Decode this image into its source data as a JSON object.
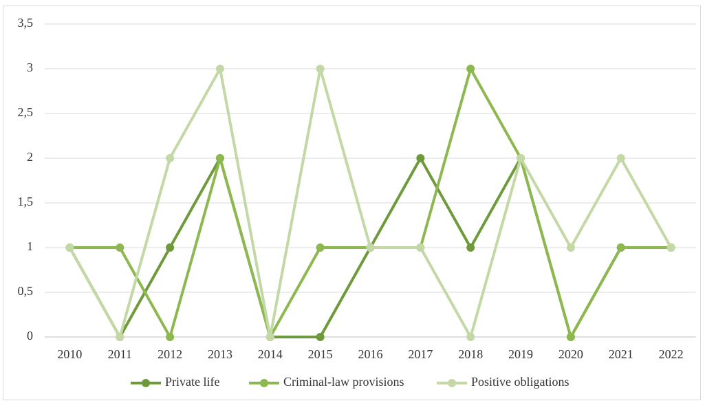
{
  "chart_data": {
    "type": "line",
    "title": "",
    "xlabel": "",
    "ylabel": "",
    "categories": [
      "2010",
      "2011",
      "2012",
      "2013",
      "2014",
      "2015",
      "2016",
      "2017",
      "2018",
      "2019",
      "2020",
      "2021",
      "2022"
    ],
    "ylim": [
      0,
      3.5
    ],
    "ytick_values": [
      0,
      0.5,
      1,
      1.5,
      2,
      2.5,
      3,
      3.5
    ],
    "ytick_labels": [
      "0",
      "0,5",
      "1",
      "1,5",
      "2",
      "2,5",
      "3",
      "3,5"
    ],
    "grid": "horizontal",
    "legend_position": "bottom",
    "series": [
      {
        "name": "Private life",
        "color": "#6f9a3b",
        "values": [
          1,
          0,
          1,
          2,
          0,
          0,
          1,
          2,
          1,
          2,
          0,
          1,
          1
        ]
      },
      {
        "name": "Criminal-law provisions",
        "color": "#8db84f",
        "values": [
          1,
          1,
          0,
          2,
          0,
          1,
          1,
          1,
          3,
          2,
          0,
          1,
          1
        ]
      },
      {
        "name": "Positive obligations",
        "color": "#c3d8a4",
        "values": [
          1,
          0,
          2,
          3,
          0,
          3,
          1,
          1,
          0,
          2,
          1,
          2,
          1
        ]
      }
    ]
  }
}
